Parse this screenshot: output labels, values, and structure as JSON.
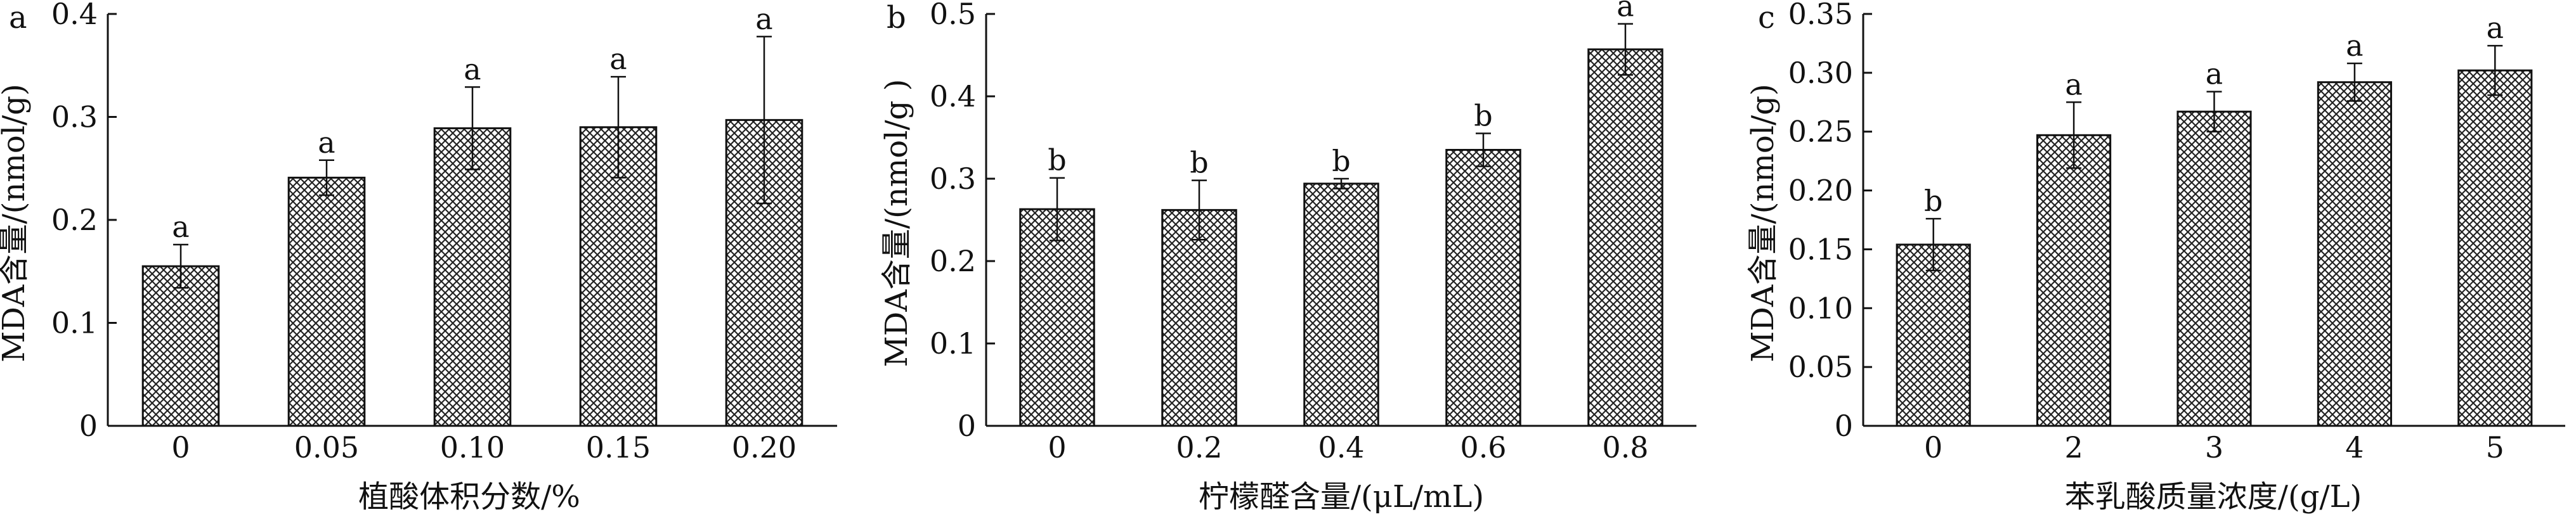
{
  "chart_data": [
    {
      "type": "bar",
      "panel": "a",
      "categories": [
        "0",
        "0.05",
        "0.10",
        "0.15",
        "0.20"
      ],
      "values": [
        0.155,
        0.241,
        0.289,
        0.29,
        0.297
      ],
      "errors": [
        0.021,
        0.017,
        0.04,
        0.049,
        0.081
      ],
      "significance": [
        "a",
        "a",
        "a",
        "a",
        "a"
      ],
      "xlabel": "植酸体积分数/%",
      "ylabel": "MDA含量/(nmol/g)",
      "ylim": [
        0,
        0.4
      ],
      "yticks": [
        "0",
        "0.1",
        "0.2",
        "0.3",
        "0.4"
      ],
      "grid": false
    },
    {
      "type": "bar",
      "panel": "b",
      "categories": [
        "0",
        "0.2",
        "0.4",
        "0.6",
        "0.8"
      ],
      "values": [
        0.263,
        0.262,
        0.294,
        0.335,
        0.457
      ],
      "errors": [
        0.038,
        0.036,
        0.006,
        0.02,
        0.031
      ],
      "significance": [
        "b",
        "b",
        "b",
        "b",
        "a"
      ],
      "xlabel": "柠檬醛含量/(μL/mL)",
      "ylabel": "MDA含量/(nmol/g )",
      "ylim": [
        0,
        0.5
      ],
      "yticks": [
        "0",
        "0.1",
        "0.2",
        "0.3",
        "0.4",
        "0.5"
      ],
      "grid": false
    },
    {
      "type": "bar",
      "panel": "c",
      "categories": [
        "0",
        "2",
        "3",
        "4",
        "5"
      ],
      "values": [
        0.154,
        0.247,
        0.267,
        0.292,
        0.302
      ],
      "errors": [
        0.022,
        0.028,
        0.017,
        0.016,
        0.021
      ],
      "significance": [
        "b",
        "a",
        "a",
        "a",
        "a"
      ],
      "xlabel": "苯乳酸质量浓度/(g/L)",
      "ylabel": "MDA含量/(nmol/g)",
      "ylim": [
        0,
        0.35
      ],
      "yticks": [
        "0",
        "0.05",
        "0.10",
        "0.15",
        "0.20",
        "0.25",
        "0.30",
        "0.35"
      ],
      "grid": false
    }
  ]
}
